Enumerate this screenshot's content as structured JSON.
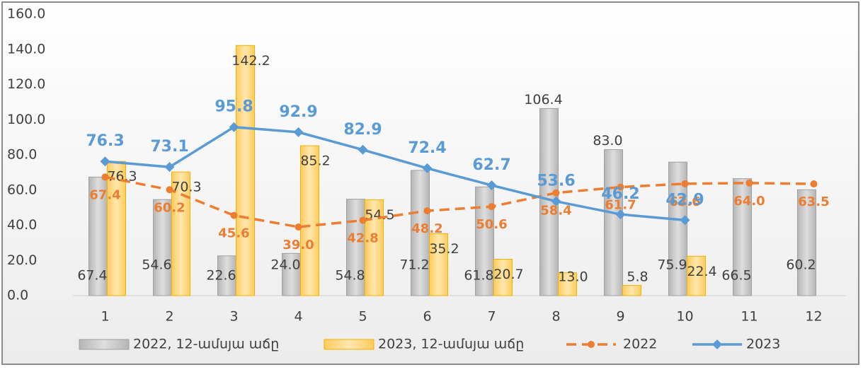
{
  "chart_data": {
    "type": "bar",
    "categories": [
      "1",
      "2",
      "3",
      "4",
      "5",
      "6",
      "7",
      "8",
      "9",
      "10",
      "11",
      "12"
    ],
    "ylim": [
      0,
      160
    ],
    "yticks": [
      {
        "value": 0,
        "label": "0.0"
      },
      {
        "value": 20,
        "label": "20.0"
      },
      {
        "value": 40,
        "label": "40.0"
      },
      {
        "value": 60,
        "label": "60.0"
      },
      {
        "value": 80,
        "label": "80.0"
      },
      {
        "value": 100,
        "label": "100.0"
      },
      {
        "value": 120,
        "label": "120.0"
      },
      {
        "value": 140,
        "label": "140.0"
      },
      {
        "value": 160,
        "label": "160.0"
      }
    ],
    "legend": "bottom",
    "series": [
      {
        "name": "2022, 12-ամսյա աճը",
        "type": "bar",
        "color": "#c9c9c9",
        "values": [
          67.4,
          54.6,
          22.6,
          24.0,
          54.8,
          71.2,
          61.8,
          106.4,
          83.0,
          75.9,
          66.5,
          60.2
        ],
        "value_labels": [
          "67.4",
          "54.6",
          "22.6",
          "24.0",
          "54.8",
          "71.2",
          "61.8",
          "106.4",
          "83.0",
          "75.9",
          "66.5",
          "60.2"
        ]
      },
      {
        "name": "2023, 12-ամսյա աճը",
        "type": "bar",
        "color": "#ffd27f",
        "values": [
          76.3,
          70.3,
          142.2,
          85.2,
          54.5,
          35.2,
          20.7,
          13.0,
          5.8,
          22.4,
          null,
          null
        ],
        "value_labels": [
          "76.3",
          "70.3",
          "142.2",
          "85.2",
          "54.5",
          "35.2",
          "20.7",
          "13.0",
          "5.8",
          "22.4",
          null,
          null
        ]
      },
      {
        "name": "2022",
        "type": "line",
        "color": "#ed7d31",
        "dashed": true,
        "values": [
          67.4,
          60.2,
          45.6,
          39.0,
          42.8,
          48.2,
          50.6,
          58.4,
          61.7,
          63.6,
          64.0,
          63.5
        ],
        "value_labels": [
          "67.4",
          "60.2",
          "45.6",
          "39.0",
          "42.8",
          "48.2",
          "50.6",
          "58.4",
          "61.7",
          "63.6",
          "64.0",
          "63.5"
        ]
      },
      {
        "name": "2023",
        "type": "line",
        "color": "#5b9bd5",
        "values": [
          76.3,
          73.1,
          95.8,
          92.9,
          82.9,
          72.4,
          62.7,
          53.6,
          46.2,
          42.9,
          null,
          null
        ],
        "value_labels": [
          "76.3",
          "73.1",
          "95.8",
          "92.9",
          "82.9",
          "72.4",
          "62.7",
          "53.6",
          "46.2",
          "42.9",
          null,
          null
        ]
      }
    ]
  }
}
